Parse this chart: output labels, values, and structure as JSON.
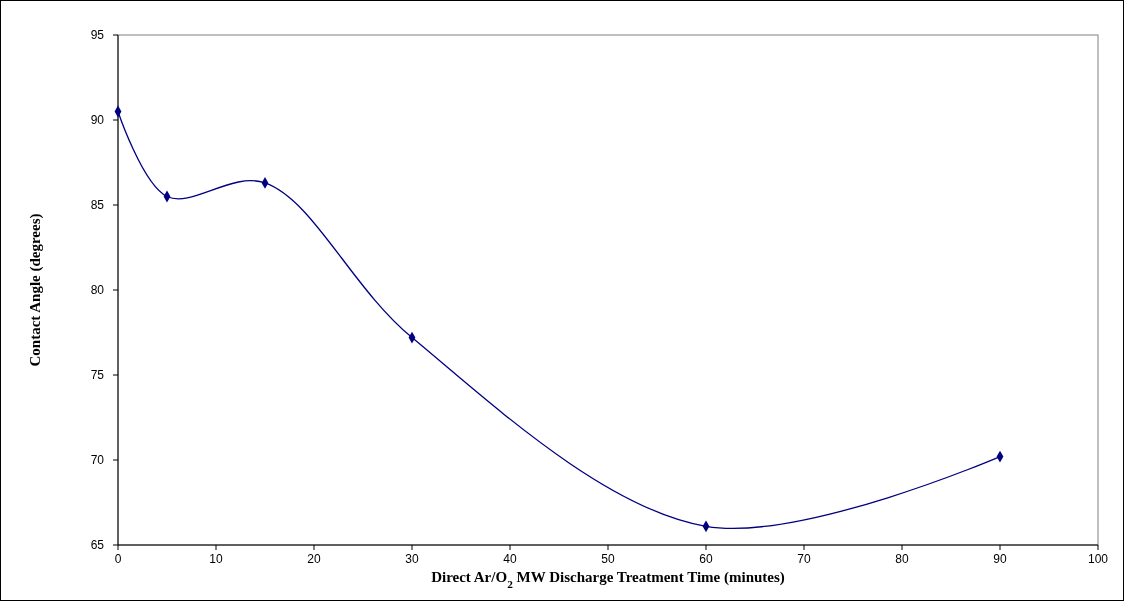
{
  "chart_data": {
    "type": "line",
    "xlabel": "Direct Ar/O$_{2}$ MW Discharge Treatment Time (minutes)",
    "ylabel": "Contact Angle (degrees)",
    "x": [
      0,
      5,
      15,
      30,
      60,
      90
    ],
    "series": [
      {
        "color": "#000080",
        "values": [
          90.5,
          85.5,
          86.3,
          77.2,
          66.1,
          70.2
        ]
      }
    ],
    "xlim": [
      0,
      100
    ],
    "xticks": [
      0,
      10,
      20,
      30,
      40,
      50,
      60,
      70,
      80,
      90,
      100
    ],
    "ylim": [
      65,
      95
    ],
    "yticks": [
      65,
      70,
      75,
      80,
      85,
      90,
      95
    ],
    "marker": "diamond",
    "line_style": "solid"
  }
}
